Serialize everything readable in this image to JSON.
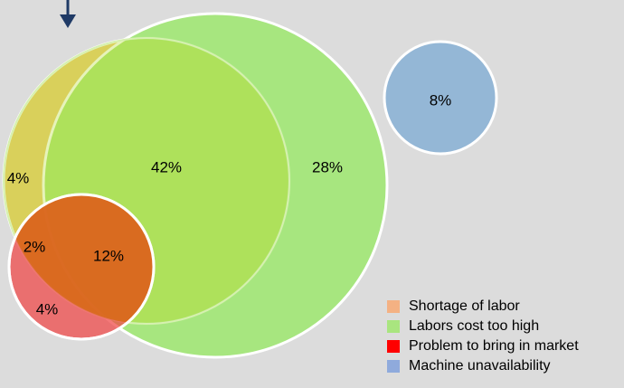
{
  "diagram": {
    "sets": [
      {
        "name": "Shortage of labor",
        "color": "#f4b183"
      },
      {
        "name": "Labors cost too high",
        "color": "#a9e57f"
      },
      {
        "name": "Problem to bring in market",
        "color": "#ff0000"
      },
      {
        "name": "Machine unavailability",
        "color": "#8faadc"
      }
    ],
    "regions": {
      "shortage_only": "4%",
      "shortage_and_cost": "42%",
      "cost_only": "28%",
      "machine_only": "8%",
      "shortage_and_market": "2%",
      "shortage_cost_market": "12%",
      "market_only": "4%"
    }
  }
}
